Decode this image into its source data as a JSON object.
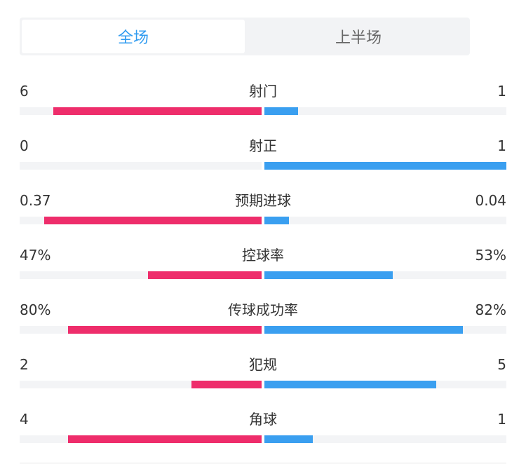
{
  "tabs": [
    {
      "label": "全场",
      "active": true
    },
    {
      "label": "上半场",
      "active": false
    }
  ],
  "colors": {
    "home": "#ee2d6b",
    "away": "#3a9ff0",
    "active_tab": "#2f9bf0"
  },
  "stats": [
    {
      "label": "射门",
      "left": "6",
      "right": "1",
      "left_fill": 0.86,
      "right_fill": 0.14
    },
    {
      "label": "射正",
      "left": "0",
      "right": "1",
      "left_fill": 0.0,
      "right_fill": 1.0
    },
    {
      "label": "预期进球",
      "left": "0.37",
      "right": "0.04",
      "left_fill": 0.9,
      "right_fill": 0.1
    },
    {
      "label": "控球率",
      "left": "47%",
      "right": "53%",
      "left_fill": 0.47,
      "right_fill": 0.53
    },
    {
      "label": "传球成功率",
      "left": "80%",
      "right": "82%",
      "left_fill": 0.8,
      "right_fill": 0.82
    },
    {
      "label": "犯规",
      "left": "2",
      "right": "5",
      "left_fill": 0.29,
      "right_fill": 0.71
    },
    {
      "label": "角球",
      "left": "4",
      "right": "1",
      "left_fill": 0.8,
      "right_fill": 0.2
    }
  ]
}
